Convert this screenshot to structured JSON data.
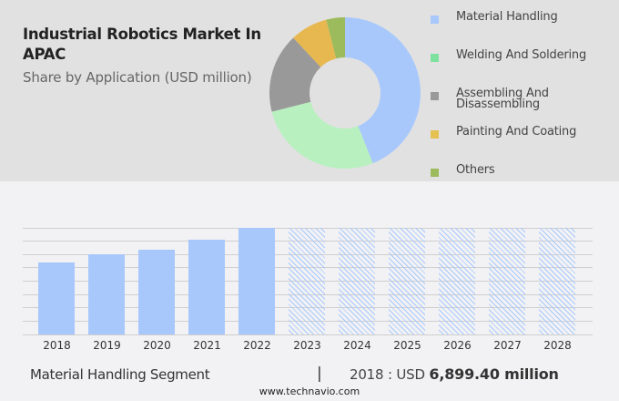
{
  "header": {
    "title": "Industrial Robotics Market In APAC",
    "subtitle": "Share by Application (USD million)"
  },
  "legend": [
    {
      "label": "Material Handling",
      "color": "#a8c8fc"
    },
    {
      "label": "Welding And Soldering",
      "color": "#7fe0a0"
    },
    {
      "label": "Assembling And Disassembling",
      "color": "#999999"
    },
    {
      "label": "Painting And Coating",
      "color": "#e6c050"
    },
    {
      "label": "Others",
      "color": "#9cbb5c"
    }
  ],
  "footer": {
    "segment": "Material Handling Segment",
    "separator": "|",
    "year_prefix": "2018 : USD",
    "value": "6,899.40 million",
    "url": "www.technavio.com"
  },
  "chart_data": [
    {
      "type": "pie",
      "title": "Industrial Robotics Market In APAC",
      "subtitle": "Share by Application (USD million)",
      "donut": true,
      "categories": [
        "Material Handling",
        "Welding And Soldering",
        "Assembling And Disassembling",
        "Painting And Coating",
        "Others"
      ],
      "values": [
        44,
        27,
        17,
        8,
        4
      ],
      "colors": [
        "#a8c8fc",
        "#b8f0c0",
        "#999999",
        "#e8b850",
        "#9cbb5c"
      ],
      "legend_position": "right"
    },
    {
      "type": "bar",
      "title": "Material Handling Segment",
      "categories": [
        "2018",
        "2019",
        "2020",
        "2021",
        "2022",
        "2023",
        "2024",
        "2025",
        "2026",
        "2027",
        "2028"
      ],
      "values": [
        6899.4,
        7680,
        8120,
        9080,
        10220,
        null,
        null,
        null,
        null,
        null,
        null
      ],
      "forecast_years": [
        "2023",
        "2024",
        "2025",
        "2026",
        "2027",
        "2028"
      ],
      "xlabel": "",
      "ylabel": "",
      "grid": true,
      "annotation": "2018 : USD 6,899.40 million"
    }
  ]
}
